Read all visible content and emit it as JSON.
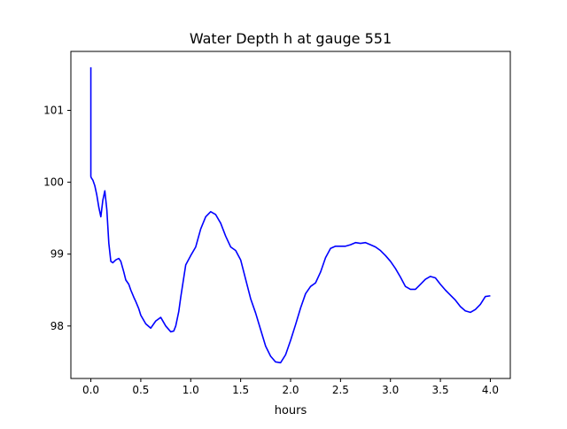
{
  "chart_data": {
    "type": "line",
    "title": "Water Depth h at gauge 551",
    "xlabel": "hours",
    "ylabel": "",
    "xlim": [
      -0.2,
      4.2
    ],
    "ylim": [
      97.27,
      101.82
    ],
    "grid": false,
    "xticks": [
      0.0,
      0.5,
      1.0,
      1.5,
      2.0,
      2.5,
      3.0,
      3.5,
      4.0
    ],
    "xtick_labels": [
      "0.0",
      "0.5",
      "1.0",
      "1.5",
      "2.0",
      "2.5",
      "3.0",
      "3.5",
      "4.0"
    ],
    "yticks": [
      98,
      99,
      100,
      101
    ],
    "ytick_labels": [
      "98",
      "99",
      "100",
      "101"
    ],
    "series": [
      {
        "color": "#0000ff",
        "x": [
          0.0,
          0.0,
          0.005,
          0.02,
          0.04,
          0.06,
          0.08,
          0.1,
          0.12,
          0.14,
          0.16,
          0.18,
          0.2,
          0.22,
          0.25,
          0.28,
          0.3,
          0.33,
          0.35,
          0.38,
          0.4,
          0.43,
          0.45,
          0.48,
          0.5,
          0.55,
          0.6,
          0.65,
          0.7,
          0.75,
          0.8,
          0.83,
          0.85,
          0.88,
          0.9,
          0.95,
          1.0,
          1.05,
          1.1,
          1.15,
          1.2,
          1.25,
          1.3,
          1.35,
          1.4,
          1.45,
          1.5,
          1.55,
          1.6,
          1.65,
          1.7,
          1.75,
          1.8,
          1.85,
          1.9,
          1.95,
          2.0,
          2.05,
          2.1,
          2.15,
          2.2,
          2.25,
          2.3,
          2.35,
          2.4,
          2.45,
          2.5,
          2.55,
          2.6,
          2.65,
          2.7,
          2.75,
          2.8,
          2.85,
          2.9,
          2.95,
          3.0,
          3.05,
          3.1,
          3.15,
          3.2,
          3.25,
          3.3,
          3.35,
          3.4,
          3.45,
          3.5,
          3.55,
          3.6,
          3.65,
          3.7,
          3.75,
          3.8,
          3.85,
          3.9,
          3.95,
          4.0
        ],
        "y": [
          101.6,
          100.08,
          100.06,
          100.03,
          99.95,
          99.82,
          99.65,
          99.52,
          99.75,
          99.88,
          99.62,
          99.15,
          98.9,
          98.88,
          98.92,
          98.94,
          98.9,
          98.75,
          98.64,
          98.58,
          98.5,
          98.4,
          98.34,
          98.24,
          98.15,
          98.03,
          97.97,
          98.07,
          98.12,
          98.0,
          97.92,
          97.93,
          98.0,
          98.2,
          98.4,
          98.85,
          98.98,
          99.1,
          99.35,
          99.52,
          99.59,
          99.55,
          99.43,
          99.25,
          99.1,
          99.05,
          98.92,
          98.65,
          98.38,
          98.18,
          97.95,
          97.72,
          97.58,
          97.5,
          97.49,
          97.6,
          97.8,
          98.02,
          98.25,
          98.45,
          98.55,
          98.6,
          98.75,
          98.95,
          99.08,
          99.11,
          99.11,
          99.11,
          99.13,
          99.16,
          99.15,
          99.16,
          99.13,
          99.1,
          99.05,
          98.98,
          98.9,
          98.8,
          98.68,
          98.55,
          98.51,
          98.51,
          98.58,
          98.65,
          98.69,
          98.67,
          98.58,
          98.5,
          98.43,
          98.36,
          98.27,
          98.21,
          98.19,
          98.23,
          98.3,
          98.41,
          98.42
        ]
      }
    ]
  }
}
